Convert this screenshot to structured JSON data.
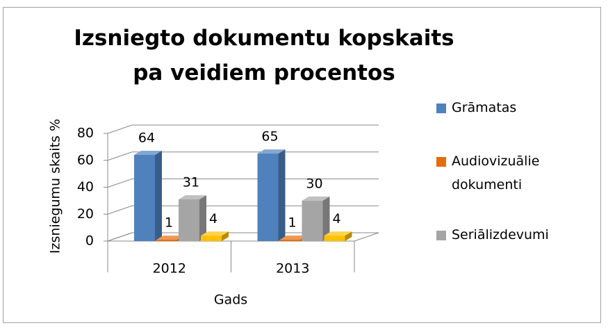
{
  "chart_data": {
    "type": "bar3d",
    "title": "Izsniegto dokumentu kopskaits pa veidiem procentos",
    "y_label": "Izsniegumu skaits %",
    "x_label": "Gads",
    "categories": [
      "2012",
      "2013"
    ],
    "series": [
      {
        "name": "Grāmatas",
        "color": "#4f81bd",
        "values": [
          64,
          65
        ]
      },
      {
        "name": "Audiovizuālie dokumenti",
        "color": "#e46c0a",
        "values": [
          1,
          1
        ]
      },
      {
        "name": "Seriālizdevumi",
        "color": "#a5a5a5",
        "values": [
          31,
          30
        ]
      },
      {
        "color": "#ffc000",
        "values": [
          4,
          4
        ]
      }
    ],
    "ylim": [
      0,
      80
    ],
    "yticks": [
      0,
      20,
      40,
      60,
      80
    ],
    "grid": true,
    "legend": "right"
  }
}
